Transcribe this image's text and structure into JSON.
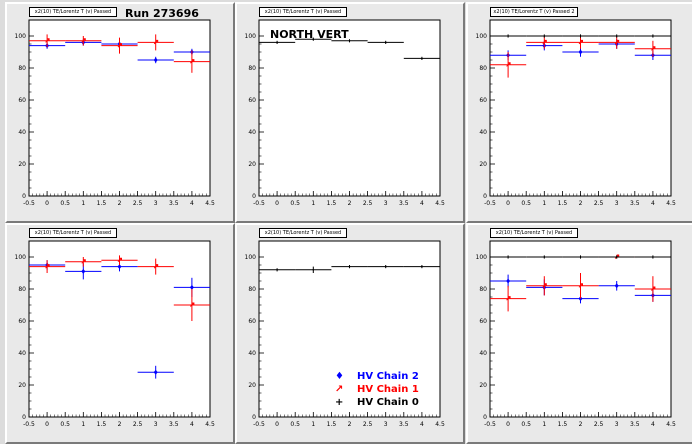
{
  "pads": [
    {
      "title": "x2(10) TE/Lorentz T (v) Passed",
      "corner_label": "Run 273696",
      "chart_data": {
        "type": "scatter",
        "xlim": [
          -0.5,
          4.5
        ],
        "ylim": [
          0,
          110
        ],
        "xticks": [
          -0.5,
          0,
          0.5,
          1,
          1.5,
          2,
          2.5,
          3,
          3.5,
          4,
          4.5
        ],
        "yticks": [
          0,
          20,
          40,
          60,
          80,
          100
        ],
        "series": [
          {
            "name": "HV Chain 2",
            "color": "#0000ff",
            "points": [
              {
                "x": 0,
                "y": 94,
                "xerr": 0.5,
                "yerr": 2
              },
              {
                "x": 1,
                "y": 96,
                "xerr": 0.5,
                "yerr": 2
              },
              {
                "x": 2,
                "y": 95,
                "xerr": 0.5,
                "yerr": 2
              },
              {
                "x": 3,
                "y": 85,
                "xerr": 0.5,
                "yerr": 2
              },
              {
                "x": 4,
                "y": 90,
                "xerr": 0.5,
                "yerr": 2
              }
            ]
          },
          {
            "name": "HV Chain 1",
            "color": "#ff0000",
            "points": [
              {
                "x": 0,
                "y": 97,
                "xerr": 0.5,
                "yerr": 4
              },
              {
                "x": 1,
                "y": 97,
                "xerr": 0.5,
                "yerr": 3
              },
              {
                "x": 2,
                "y": 94,
                "xerr": 0.5,
                "yerr": 5
              },
              {
                "x": 3,
                "y": 96,
                "xerr": 0.5,
                "yerr": 5
              },
              {
                "x": 4,
                "y": 84,
                "xerr": 0.5,
                "yerr": 7
              }
            ]
          }
        ]
      }
    },
    {
      "title": "x2(10) TE/Lorentz T (v) Passed",
      "corner_label": "NORTH VERT",
      "chart_data": {
        "type": "scatter",
        "xlim": [
          -0.5,
          4.5
        ],
        "ylim": [
          0,
          110
        ],
        "xticks": [
          -0.5,
          0,
          0.5,
          1,
          1.5,
          2,
          2.5,
          3,
          3.5,
          4,
          4.5
        ],
        "yticks": [
          0,
          20,
          40,
          60,
          80,
          100
        ],
        "series": [
          {
            "name": "HV Chain 0",
            "color": "#000000",
            "points": [
              {
                "x": 0,
                "y": 96,
                "xerr": 0.5,
                "yerr": 1
              },
              {
                "x": 1,
                "y": 98,
                "xerr": 0.5,
                "yerr": 1
              },
              {
                "x": 2,
                "y": 97,
                "xerr": 0.5,
                "yerr": 1
              },
              {
                "x": 3,
                "y": 96,
                "xerr": 0.5,
                "yerr": 1
              },
              {
                "x": 4,
                "y": 86,
                "xerr": 0.5,
                "yerr": 1
              }
            ]
          }
        ]
      }
    },
    {
      "title": "x2(10) TE/Lorentz T (v) Passed 2",
      "corner_label": "",
      "chart_data": {
        "type": "scatter",
        "xlim": [
          -0.5,
          4.5
        ],
        "ylim": [
          0,
          110
        ],
        "xticks": [
          -0.5,
          0,
          0.5,
          1,
          1.5,
          2,
          2.5,
          3,
          3.5,
          4,
          4.5
        ],
        "yticks": [
          0,
          20,
          40,
          60,
          80,
          100
        ],
        "series": [
          {
            "name": "HV Chain 2",
            "color": "#0000ff",
            "points": [
              {
                "x": 0,
                "y": 88,
                "xerr": 0.5,
                "yerr": 3
              },
              {
                "x": 1,
                "y": 94,
                "xerr": 0.5,
                "yerr": 3
              },
              {
                "x": 2,
                "y": 90,
                "xerr": 0.5,
                "yerr": 3
              },
              {
                "x": 3,
                "y": 95,
                "xerr": 0.5,
                "yerr": 3
              },
              {
                "x": 4,
                "y": 88,
                "xerr": 0.5,
                "yerr": 3
              }
            ]
          },
          {
            "name": "HV Chain 1",
            "color": "#ff0000",
            "points": [
              {
                "x": 0,
                "y": 82,
                "xerr": 0.5,
                "yerr": 8
              },
              {
                "x": 1,
                "y": 96,
                "xerr": 0.5,
                "yerr": 4
              },
              {
                "x": 2,
                "y": 96,
                "xerr": 0.5,
                "yerr": 4
              },
              {
                "x": 3,
                "y": 96,
                "xerr": 0.5,
                "yerr": 4
              },
              {
                "x": 4,
                "y": 92,
                "xerr": 0.5,
                "yerr": 5
              }
            ]
          },
          {
            "name": "HV Chain 0",
            "color": "#000000",
            "points": [
              {
                "x": 0,
                "y": 100,
                "xerr": 0.5,
                "yerr": 1
              },
              {
                "x": 1,
                "y": 100,
                "xerr": 0.5,
                "yerr": 1
              },
              {
                "x": 2,
                "y": 100,
                "xerr": 0.5,
                "yerr": 1
              },
              {
                "x": 3,
                "y": 100,
                "xerr": 0.5,
                "yerr": 1
              },
              {
                "x": 4,
                "y": 100,
                "xerr": 0.5,
                "yerr": 1
              }
            ]
          }
        ]
      }
    },
    {
      "title": "x2(10) TE/Lorentz T (v) Passed",
      "corner_label": "",
      "chart_data": {
        "type": "scatter",
        "xlim": [
          -0.5,
          4.5
        ],
        "ylim": [
          0,
          110
        ],
        "xticks": [
          -0.5,
          0,
          0.5,
          1,
          1.5,
          2,
          2.5,
          3,
          3.5,
          4,
          4.5
        ],
        "yticks": [
          0,
          20,
          40,
          60,
          80,
          100
        ],
        "series": [
          {
            "name": "HV Chain 2",
            "color": "#0000ff",
            "points": [
              {
                "x": 0,
                "y": 95,
                "xerr": 0.5,
                "yerr": 3
              },
              {
                "x": 1,
                "y": 91,
                "xerr": 0.5,
                "yerr": 5
              },
              {
                "x": 2,
                "y": 94,
                "xerr": 0.5,
                "yerr": 3
              },
              {
                "x": 3,
                "y": 28,
                "xerr": 0.5,
                "yerr": 4
              },
              {
                "x": 4,
                "y": 81,
                "xerr": 0.5,
                "yerr": 6
              }
            ]
          },
          {
            "name": "HV Chain 1",
            "color": "#ff0000",
            "points": [
              {
                "x": 0,
                "y": 94,
                "xerr": 0.5,
                "yerr": 4
              },
              {
                "x": 1,
                "y": 97,
                "xerr": 0.5,
                "yerr": 3
              },
              {
                "x": 2,
                "y": 98,
                "xerr": 0.5,
                "yerr": 3
              },
              {
                "x": 3,
                "y": 94,
                "xerr": 0.5,
                "yerr": 5
              },
              {
                "x": 4,
                "y": 70,
                "xerr": 0.5,
                "yerr": 10
              }
            ]
          }
        ]
      }
    },
    {
      "title": "x2(10) TE/Lorentz T (v) Passed",
      "corner_label": "",
      "legend": [
        {
          "label": "HV Chain 2",
          "color": "#0000ff"
        },
        {
          "label": "HV Chain 1",
          "color": "#ff0000"
        },
        {
          "label": "HV Chain 0",
          "color": "#000000"
        }
      ],
      "chart_data": {
        "type": "scatter",
        "xlim": [
          -0.5,
          4.5
        ],
        "ylim": [
          0,
          110
        ],
        "xticks": [
          -0.5,
          0,
          0.5,
          1,
          1.5,
          2,
          2.5,
          3,
          3.5,
          4,
          4.5
        ],
        "yticks": [
          0,
          20,
          40,
          60,
          80,
          100
        ],
        "legend_position": "bottom-right",
        "series": [
          {
            "name": "HV Chain 0",
            "color": "#000000",
            "points": [
              {
                "x": 0,
                "y": 92,
                "xerr": 0.5,
                "yerr": 1
              },
              {
                "x": 1,
                "y": 92,
                "xerr": 0.5,
                "yerr": 2
              },
              {
                "x": 2,
                "y": 94,
                "xerr": 0.5,
                "yerr": 1
              },
              {
                "x": 3,
                "y": 94,
                "xerr": 0.5,
                "yerr": 1
              },
              {
                "x": 4,
                "y": 94,
                "xerr": 0.5,
                "yerr": 1
              }
            ]
          }
        ]
      }
    },
    {
      "title": "x2(10) TE/Lorentz T (v) Passed",
      "corner_label": "",
      "chart_data": {
        "type": "scatter",
        "xlim": [
          -0.5,
          4.5
        ],
        "ylim": [
          0,
          110
        ],
        "xticks": [
          -0.5,
          0,
          0.5,
          1,
          1.5,
          2,
          2.5,
          3,
          3.5,
          4,
          4.5
        ],
        "yticks": [
          0,
          20,
          40,
          60,
          80,
          100
        ],
        "series": [
          {
            "name": "HV Chain 2",
            "color": "#0000ff",
            "points": [
              {
                "x": 0,
                "y": 85,
                "xerr": 0.5,
                "yerr": 4
              },
              {
                "x": 1,
                "y": 81,
                "xerr": 0.5,
                "yerr": 5
              },
              {
                "x": 2,
                "y": 74,
                "xerr": 0.5,
                "yerr": 3
              },
              {
                "x": 3,
                "y": 82,
                "xerr": 0.5,
                "yerr": 3
              },
              {
                "x": 4,
                "y": 76,
                "xerr": 0.5,
                "yerr": 4
              }
            ]
          },
          {
            "name": "HV Chain 1",
            "color": "#ff0000",
            "points": [
              {
                "x": 0,
                "y": 74,
                "xerr": 0.5,
                "yerr": 8
              },
              {
                "x": 1,
                "y": 82,
                "xerr": 0.5,
                "yerr": 6
              },
              {
                "x": 2,
                "y": 82,
                "xerr": 0.5,
                "yerr": 8
              },
              {
                "x": 3,
                "y": 100,
                "xerr": 0.5,
                "yerr": 1
              },
              {
                "x": 4,
                "y": 80,
                "xerr": 0.5,
                "yerr": 8
              }
            ]
          },
          {
            "name": "HV Chain 0",
            "color": "#000000",
            "points": [
              {
                "x": 0,
                "y": 100,
                "xerr": 0.5,
                "yerr": 1
              },
              {
                "x": 1,
                "y": 100,
                "xerr": 0.5,
                "yerr": 1
              },
              {
                "x": 2,
                "y": 100,
                "xerr": 0.5,
                "yerr": 1
              },
              {
                "x": 3,
                "y": 100,
                "xerr": 0.5,
                "yerr": 1
              },
              {
                "x": 4,
                "y": 100,
                "xerr": 0.5,
                "yerr": 1
              }
            ]
          }
        ]
      }
    }
  ]
}
